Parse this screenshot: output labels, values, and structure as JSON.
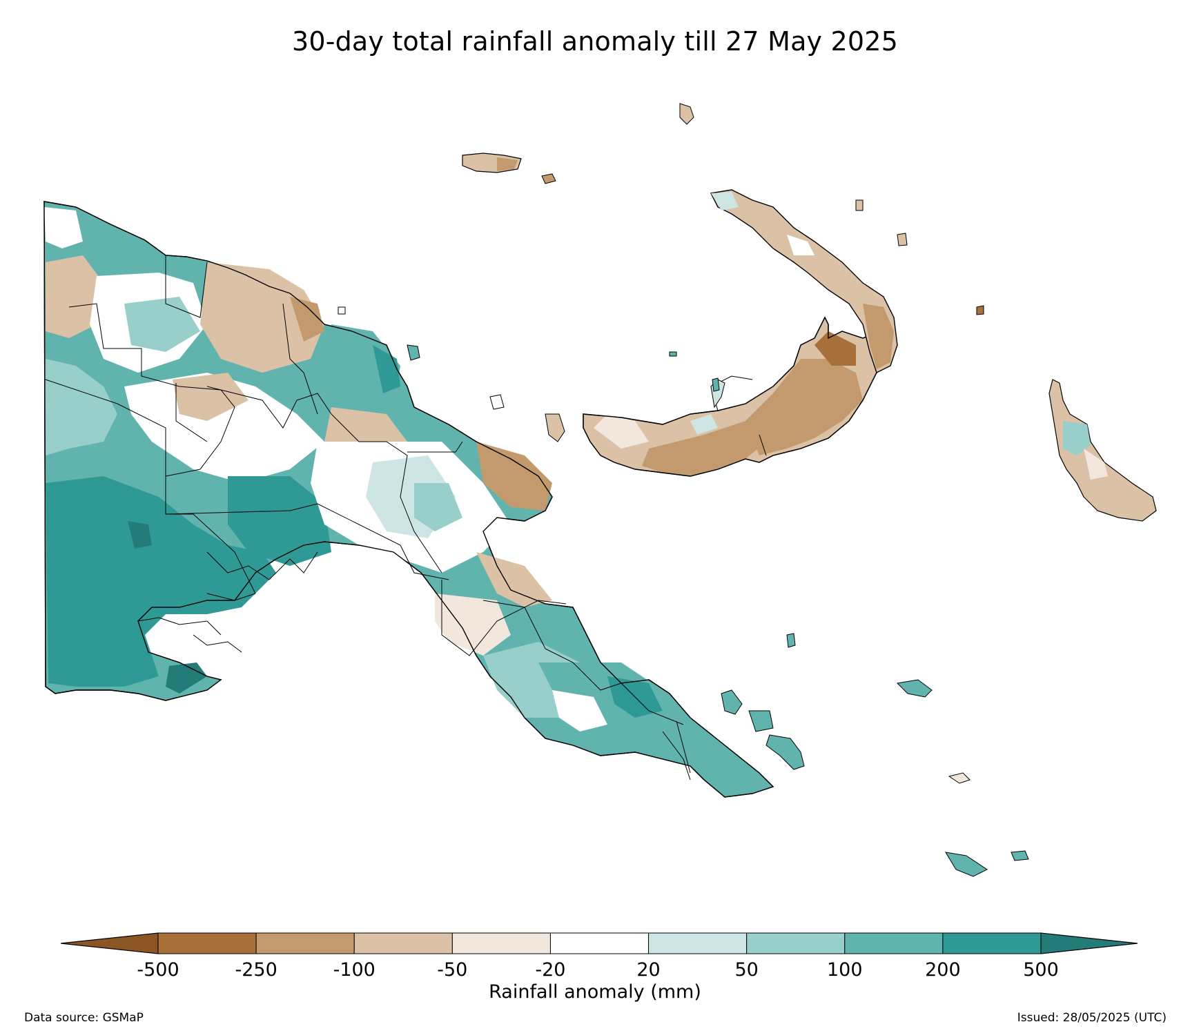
{
  "title": "30-day total rainfall anomaly till 27 May 2025",
  "colorbar": {
    "label": "Rainfall anomaly (mm)",
    "ticks": [
      "-500",
      "-250",
      "-100",
      "-50",
      "-20",
      "20",
      "50",
      "100",
      "200",
      "500"
    ],
    "colors": {
      "extend_low": "#8b5524",
      "bin_-500_-250": "#a8703a",
      "bin_-250_-100": "#c39a6e",
      "bin_-100_-50": "#dbc1a5",
      "bin_-50_-20": "#f1e7dc",
      "bin_-20_20": "#ffffff",
      "bin_20_50": "#cde6e4",
      "bin_50_100": "#98cfcb",
      "bin_100_200": "#61b3ae",
      "bin_200_500": "#2f9a95",
      "extend_high": "#237c77"
    }
  },
  "footer": {
    "source": "Data source: GSMaP",
    "issued": "Issued: 28/05/2025 (UTC)"
  }
}
